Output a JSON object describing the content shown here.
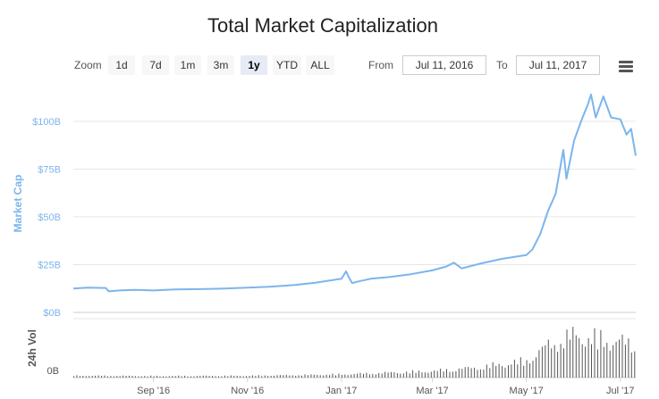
{
  "title": "Total Market Capitalization",
  "zoom": {
    "label": "Zoom",
    "buttons": [
      "1d",
      "7d",
      "1m",
      "3m",
      "1y",
      "YTD",
      "ALL"
    ],
    "active": "1y"
  },
  "range": {
    "from_label": "From",
    "from_value": "Jul 11, 2016",
    "to_label": "To",
    "to_value": "Jul 11, 2017"
  },
  "icons": {
    "menu": "hamburger-menu-icon"
  },
  "colors": {
    "series": "#7cb5ec",
    "volume": "#555555",
    "grid": "#e6e6e6"
  },
  "chart_data": {
    "type": "line",
    "title": "Total Market Capitalization",
    "ylabel": "Market Cap",
    "volume_label": "24h Vol",
    "y_ticks": [
      "$0B",
      "$25B",
      "$50B",
      "$75B",
      "$100B"
    ],
    "ylim": [
      0,
      120
    ],
    "volume_ticks": [
      "0B"
    ],
    "x_ticks": [
      "Sep '16",
      "Nov '16",
      "Jan '17",
      "Mar '17",
      "May '17",
      "Jul '17"
    ],
    "x_tick_dates": [
      "2016-09-01",
      "2016-11-01",
      "2017-01-01",
      "2017-03-01",
      "2017-05-01",
      "2017-07-01"
    ],
    "xlim": [
      "2016-07-11",
      "2017-07-11"
    ],
    "grid": true,
    "series": [
      {
        "name": "Market Cap",
        "unit": "$B",
        "x": [
          "2016-07-11",
          "2016-07-20",
          "2016-08-01",
          "2016-08-03",
          "2016-08-10",
          "2016-08-20",
          "2016-09-01",
          "2016-09-15",
          "2016-10-01",
          "2016-10-15",
          "2016-11-01",
          "2016-11-15",
          "2016-12-01",
          "2016-12-15",
          "2017-01-01",
          "2017-01-04",
          "2017-01-06",
          "2017-01-08",
          "2017-01-11",
          "2017-01-20",
          "2017-02-01",
          "2017-02-15",
          "2017-03-01",
          "2017-03-10",
          "2017-03-15",
          "2017-03-20",
          "2017-04-01",
          "2017-04-15",
          "2017-05-01",
          "2017-05-05",
          "2017-05-10",
          "2017-05-15",
          "2017-05-20",
          "2017-05-25",
          "2017-05-27",
          "2017-06-01",
          "2017-06-06",
          "2017-06-10",
          "2017-06-12",
          "2017-06-15",
          "2017-06-20",
          "2017-06-25",
          "2017-07-01",
          "2017-07-05",
          "2017-07-08",
          "2017-07-11"
        ],
        "values": [
          12.5,
          13,
          12.8,
          11,
          11.5,
          11.8,
          11.5,
          12,
          12.2,
          12.4,
          13,
          13.4,
          14.3,
          15.5,
          17.6,
          21.5,
          18,
          15.3,
          16,
          17.6,
          18.5,
          20,
          22,
          24,
          26,
          23,
          25.5,
          28,
          30,
          33,
          41,
          53,
          62,
          85,
          70,
          90,
          101,
          109,
          114,
          102,
          113,
          102,
          101,
          93,
          96,
          82
        ]
      }
    ],
    "volume": {
      "name": "24h Vol",
      "x": [
        "2016-07-11",
        "2016-09-01",
        "2016-11-01",
        "2017-01-01",
        "2017-03-01",
        "2017-04-01",
        "2017-05-01",
        "2017-05-15",
        "2017-06-01",
        "2017-06-15",
        "2017-07-01",
        "2017-07-11"
      ],
      "values": [
        0.15,
        0.12,
        0.14,
        0.25,
        0.5,
        0.8,
        1.3,
        2.5,
        3.3,
        3.0,
        2.8,
        2.4
      ]
    }
  }
}
